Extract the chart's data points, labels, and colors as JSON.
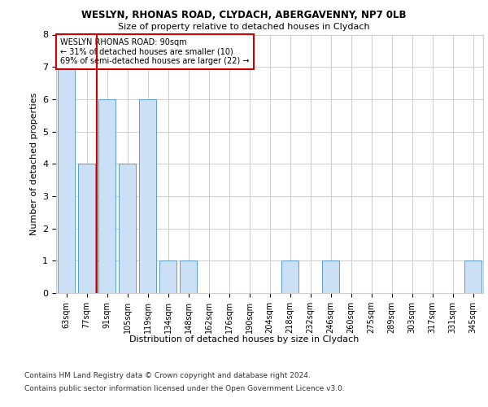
{
  "title1": "WESLYN, RHONAS ROAD, CLYDACH, ABERGAVENNY, NP7 0LB",
  "title2": "Size of property relative to detached houses in Clydach",
  "xlabel": "Distribution of detached houses by size in Clydach",
  "ylabel": "Number of detached properties",
  "categories": [
    "63sqm",
    "77sqm",
    "91sqm",
    "105sqm",
    "119sqm",
    "134sqm",
    "148sqm",
    "162sqm",
    "176sqm",
    "190sqm",
    "204sqm",
    "218sqm",
    "232sqm",
    "246sqm",
    "260sqm",
    "275sqm",
    "289sqm",
    "303sqm",
    "317sqm",
    "331sqm",
    "345sqm"
  ],
  "values": [
    7,
    4,
    6,
    4,
    6,
    1,
    1,
    0,
    0,
    0,
    0,
    1,
    0,
    1,
    0,
    0,
    0,
    0,
    0,
    0,
    1
  ],
  "bar_color": "#cce0f5",
  "bar_edge_color": "#5b9bd5",
  "subject_line_index": 2,
  "annotation_text": "WESLYN RHONAS ROAD: 90sqm\n← 31% of detached houses are smaller (10)\n69% of semi-detached houses are larger (22) →",
  "annotation_box_color": "#ffffff",
  "annotation_box_edge": "#cc0000",
  "ylim": [
    0,
    8
  ],
  "yticks": [
    0,
    1,
    2,
    3,
    4,
    5,
    6,
    7,
    8
  ],
  "footer1": "Contains HM Land Registry data © Crown copyright and database right 2024.",
  "footer2": "Contains public sector information licensed under the Open Government Licence v3.0.",
  "background_color": "#ffffff",
  "grid_color": "#cccccc"
}
